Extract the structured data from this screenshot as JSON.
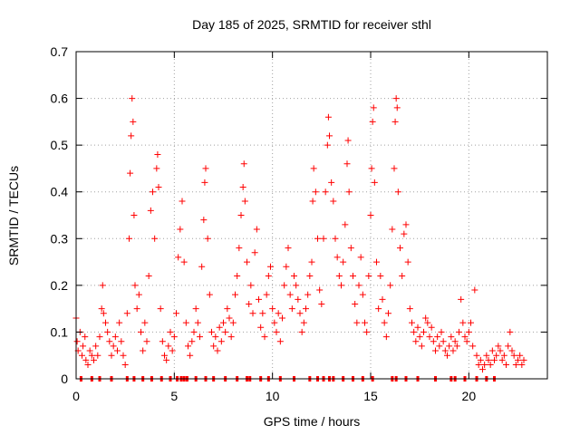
{
  "chart_data": {
    "type": "scatter",
    "title": "Day 185 of 2025, SRMTID for receiver sthl",
    "xlabel": "GPS time / hours",
    "ylabel": "SRMTID / TECUs",
    "xlim": [
      0,
      24
    ],
    "ylim": [
      0,
      0.7
    ],
    "x_ticks": [
      0,
      5,
      10,
      15,
      20
    ],
    "x_tick_labels": [
      "0",
      "5",
      "10",
      "15",
      "20"
    ],
    "y_ticks": [
      0,
      0.1,
      0.2,
      0.3,
      0.4,
      0.5,
      0.6,
      0.7
    ],
    "y_tick_labels": [
      "0",
      "0.1",
      "0.2",
      "0.3",
      "0.4",
      "0.5",
      "0.6",
      "0.7"
    ],
    "grid": true,
    "marker": "+",
    "color": "#ff0000",
    "series": [
      {
        "name": "SRMTID",
        "points": [
          [
            0.0,
            0.13
          ],
          [
            0.05,
            0.08
          ],
          [
            0.1,
            0.06
          ],
          [
            0.2,
            0.1
          ],
          [
            0.3,
            0.05
          ],
          [
            0.35,
            0.07
          ],
          [
            0.45,
            0.09
          ],
          [
            0.5,
            0.04
          ],
          [
            0.6,
            0.03
          ],
          [
            0.7,
            0.06
          ],
          [
            0.8,
            0.05
          ],
          [
            0.9,
            0.04
          ],
          [
            1.0,
            0.07
          ],
          [
            1.1,
            0.05
          ],
          [
            1.2,
            0.09
          ],
          [
            1.3,
            0.15
          ],
          [
            1.35,
            0.2
          ],
          [
            1.4,
            0.14
          ],
          [
            1.5,
            0.12
          ],
          [
            1.6,
            0.1
          ],
          [
            1.7,
            0.08
          ],
          [
            1.8,
            0.05
          ],
          [
            1.9,
            0.07
          ],
          [
            2.0,
            0.09
          ],
          [
            2.1,
            0.06
          ],
          [
            2.2,
            0.12
          ],
          [
            2.3,
            0.08
          ],
          [
            2.4,
            0.05
          ],
          [
            2.5,
            0.03
          ],
          [
            2.6,
            0.14
          ],
          [
            2.7,
            0.3
          ],
          [
            2.75,
            0.44
          ],
          [
            2.8,
            0.52
          ],
          [
            2.85,
            0.6
          ],
          [
            2.9,
            0.55
          ],
          [
            2.95,
            0.35
          ],
          [
            3.0,
            0.2
          ],
          [
            3.1,
            0.15
          ],
          [
            3.2,
            0.18
          ],
          [
            3.3,
            0.1
          ],
          [
            3.4,
            0.06
          ],
          [
            3.5,
            0.12
          ],
          [
            3.6,
            0.08
          ],
          [
            3.7,
            0.22
          ],
          [
            3.8,
            0.36
          ],
          [
            3.9,
            0.4
          ],
          [
            4.0,
            0.3
          ],
          [
            4.1,
            0.45
          ],
          [
            4.15,
            0.48
          ],
          [
            4.2,
            0.41
          ],
          [
            4.3,
            0.15
          ],
          [
            4.4,
            0.08
          ],
          [
            4.5,
            0.05
          ],
          [
            4.6,
            0.04
          ],
          [
            4.7,
            0.07
          ],
          [
            4.8,
            0.1
          ],
          [
            4.9,
            0.06
          ],
          [
            5.0,
            0.09
          ],
          [
            5.1,
            0.14
          ],
          [
            5.2,
            0.26
          ],
          [
            5.3,
            0.32
          ],
          [
            5.4,
            0.38
          ],
          [
            5.5,
            0.25
          ],
          [
            5.6,
            0.12
          ],
          [
            5.7,
            0.07
          ],
          [
            5.8,
            0.05
          ],
          [
            5.9,
            0.08
          ],
          [
            6.0,
            0.1
          ],
          [
            6.1,
            0.15
          ],
          [
            6.2,
            0.12
          ],
          [
            6.3,
            0.09
          ],
          [
            6.4,
            0.24
          ],
          [
            6.5,
            0.34
          ],
          [
            6.55,
            0.42
          ],
          [
            6.6,
            0.45
          ],
          [
            6.7,
            0.3
          ],
          [
            6.8,
            0.18
          ],
          [
            6.9,
            0.1
          ],
          [
            7.0,
            0.07
          ],
          [
            7.1,
            0.09
          ],
          [
            7.2,
            0.06
          ],
          [
            7.3,
            0.11
          ],
          [
            7.4,
            0.08
          ],
          [
            7.5,
            0.12
          ],
          [
            7.6,
            0.1
          ],
          [
            7.7,
            0.15
          ],
          [
            7.8,
            0.13
          ],
          [
            7.9,
            0.09
          ],
          [
            8.0,
            0.12
          ],
          [
            8.1,
            0.18
          ],
          [
            8.2,
            0.22
          ],
          [
            8.3,
            0.28
          ],
          [
            8.4,
            0.35
          ],
          [
            8.5,
            0.41
          ],
          [
            8.55,
            0.46
          ],
          [
            8.6,
            0.38
          ],
          [
            8.7,
            0.25
          ],
          [
            8.8,
            0.16
          ],
          [
            8.9,
            0.2
          ],
          [
            9.0,
            0.14
          ],
          [
            9.1,
            0.27
          ],
          [
            9.2,
            0.32
          ],
          [
            9.3,
            0.17
          ],
          [
            9.4,
            0.11
          ],
          [
            9.5,
            0.14
          ],
          [
            9.6,
            0.09
          ],
          [
            9.7,
            0.18
          ],
          [
            9.8,
            0.22
          ],
          [
            9.9,
            0.24
          ],
          [
            10.0,
            0.15
          ],
          [
            10.1,
            0.12
          ],
          [
            10.2,
            0.1
          ],
          [
            10.3,
            0.14
          ],
          [
            10.4,
            0.08
          ],
          [
            10.5,
            0.13
          ],
          [
            10.6,
            0.2
          ],
          [
            10.7,
            0.24
          ],
          [
            10.8,
            0.28
          ],
          [
            10.9,
            0.18
          ],
          [
            11.0,
            0.15
          ],
          [
            11.1,
            0.22
          ],
          [
            11.2,
            0.2
          ],
          [
            11.3,
            0.17
          ],
          [
            11.4,
            0.14
          ],
          [
            11.5,
            0.1
          ],
          [
            11.6,
            0.12
          ],
          [
            11.7,
            0.15
          ],
          [
            11.8,
            0.18
          ],
          [
            11.9,
            0.22
          ],
          [
            12.0,
            0.25
          ],
          [
            12.05,
            0.38
          ],
          [
            12.1,
            0.45
          ],
          [
            12.2,
            0.4
          ],
          [
            12.3,
            0.3
          ],
          [
            12.4,
            0.19
          ],
          [
            12.5,
            0.16
          ],
          [
            12.6,
            0.3
          ],
          [
            12.7,
            0.4
          ],
          [
            12.8,
            0.5
          ],
          [
            12.85,
            0.56
          ],
          [
            12.9,
            0.52
          ],
          [
            13.0,
            0.42
          ],
          [
            13.1,
            0.38
          ],
          [
            13.2,
            0.3
          ],
          [
            13.3,
            0.26
          ],
          [
            13.4,
            0.22
          ],
          [
            13.5,
            0.2
          ],
          [
            13.6,
            0.25
          ],
          [
            13.7,
            0.33
          ],
          [
            13.8,
            0.46
          ],
          [
            13.85,
            0.51
          ],
          [
            13.9,
            0.4
          ],
          [
            14.0,
            0.28
          ],
          [
            14.1,
            0.22
          ],
          [
            14.2,
            0.16
          ],
          [
            14.3,
            0.12
          ],
          [
            14.4,
            0.2
          ],
          [
            14.5,
            0.26
          ],
          [
            14.6,
            0.18
          ],
          [
            14.7,
            0.12
          ],
          [
            14.8,
            0.1
          ],
          [
            14.9,
            0.22
          ],
          [
            15.0,
            0.35
          ],
          [
            15.05,
            0.45
          ],
          [
            15.1,
            0.55
          ],
          [
            15.15,
            0.58
          ],
          [
            15.2,
            0.42
          ],
          [
            15.3,
            0.25
          ],
          [
            15.4,
            0.15
          ],
          [
            15.5,
            0.22
          ],
          [
            15.6,
            0.17
          ],
          [
            15.7,
            0.12
          ],
          [
            15.8,
            0.09
          ],
          [
            15.9,
            0.14
          ],
          [
            16.0,
            0.2
          ],
          [
            16.1,
            0.32
          ],
          [
            16.2,
            0.45
          ],
          [
            16.25,
            0.55
          ],
          [
            16.3,
            0.6
          ],
          [
            16.35,
            0.58
          ],
          [
            16.4,
            0.4
          ],
          [
            16.5,
            0.28
          ],
          [
            16.6,
            0.22
          ],
          [
            16.7,
            0.31
          ],
          [
            16.8,
            0.33
          ],
          [
            16.9,
            0.25
          ],
          [
            17.0,
            0.15
          ],
          [
            17.1,
            0.12
          ],
          [
            17.2,
            0.1
          ],
          [
            17.3,
            0.08
          ],
          [
            17.4,
            0.11
          ],
          [
            17.5,
            0.09
          ],
          [
            17.6,
            0.07
          ],
          [
            17.7,
            0.1
          ],
          [
            17.8,
            0.13
          ],
          [
            17.9,
            0.12
          ],
          [
            18.0,
            0.09
          ],
          [
            18.1,
            0.11
          ],
          [
            18.2,
            0.08
          ],
          [
            18.3,
            0.06
          ],
          [
            18.4,
            0.09
          ],
          [
            18.5,
            0.07
          ],
          [
            18.6,
            0.1
          ],
          [
            18.7,
            0.08
          ],
          [
            18.8,
            0.06
          ],
          [
            18.9,
            0.05
          ],
          [
            19.0,
            0.07
          ],
          [
            19.1,
            0.09
          ],
          [
            19.2,
            0.06
          ],
          [
            19.3,
            0.08
          ],
          [
            19.4,
            0.07
          ],
          [
            19.5,
            0.1
          ],
          [
            19.6,
            0.17
          ],
          [
            19.7,
            0.12
          ],
          [
            19.8,
            0.09
          ],
          [
            19.9,
            0.08
          ],
          [
            20.0,
            0.1
          ],
          [
            20.1,
            0.12
          ],
          [
            20.2,
            0.07
          ],
          [
            20.3,
            0.19
          ],
          [
            20.4,
            0.05
          ],
          [
            20.5,
            0.03
          ],
          [
            20.6,
            0.04
          ],
          [
            20.7,
            0.02
          ],
          [
            20.8,
            0.03
          ],
          [
            20.9,
            0.05
          ],
          [
            21.0,
            0.04
          ],
          [
            21.1,
            0.03
          ],
          [
            21.2,
            0.06
          ],
          [
            21.3,
            0.04
          ],
          [
            21.4,
            0.05
          ],
          [
            21.5,
            0.07
          ],
          [
            21.6,
            0.06
          ],
          [
            21.7,
            0.04
          ],
          [
            21.8,
            0.05
          ],
          [
            21.9,
            0.03
          ],
          [
            22.0,
            0.07
          ],
          [
            22.1,
            0.1
          ],
          [
            22.2,
            0.06
          ],
          [
            22.3,
            0.05
          ],
          [
            22.4,
            0.03
          ],
          [
            22.5,
            0.04
          ],
          [
            22.6,
            0.05
          ],
          [
            22.7,
            0.03
          ],
          [
            22.8,
            0.04
          ]
        ]
      }
    ],
    "bottom_markers_x": [
      0.25,
      0.8,
      1.2,
      1.8,
      2.6,
      2.95,
      3.4,
      3.85,
      4.35,
      4.8,
      5.15,
      5.35,
      5.5,
      5.65,
      6.1,
      6.6,
      7.0,
      7.6,
      8.2,
      8.7,
      8.85,
      9.4,
      9.8,
      10.4,
      11.1,
      11.9,
      12.3,
      12.6,
      12.9,
      13.1,
      13.6,
      14.1,
      14.6,
      15.1,
      16.1,
      16.3,
      16.8,
      17.4,
      18.3,
      19.1,
      19.3,
      19.8,
      20.4,
      20.9,
      21.3
    ]
  }
}
